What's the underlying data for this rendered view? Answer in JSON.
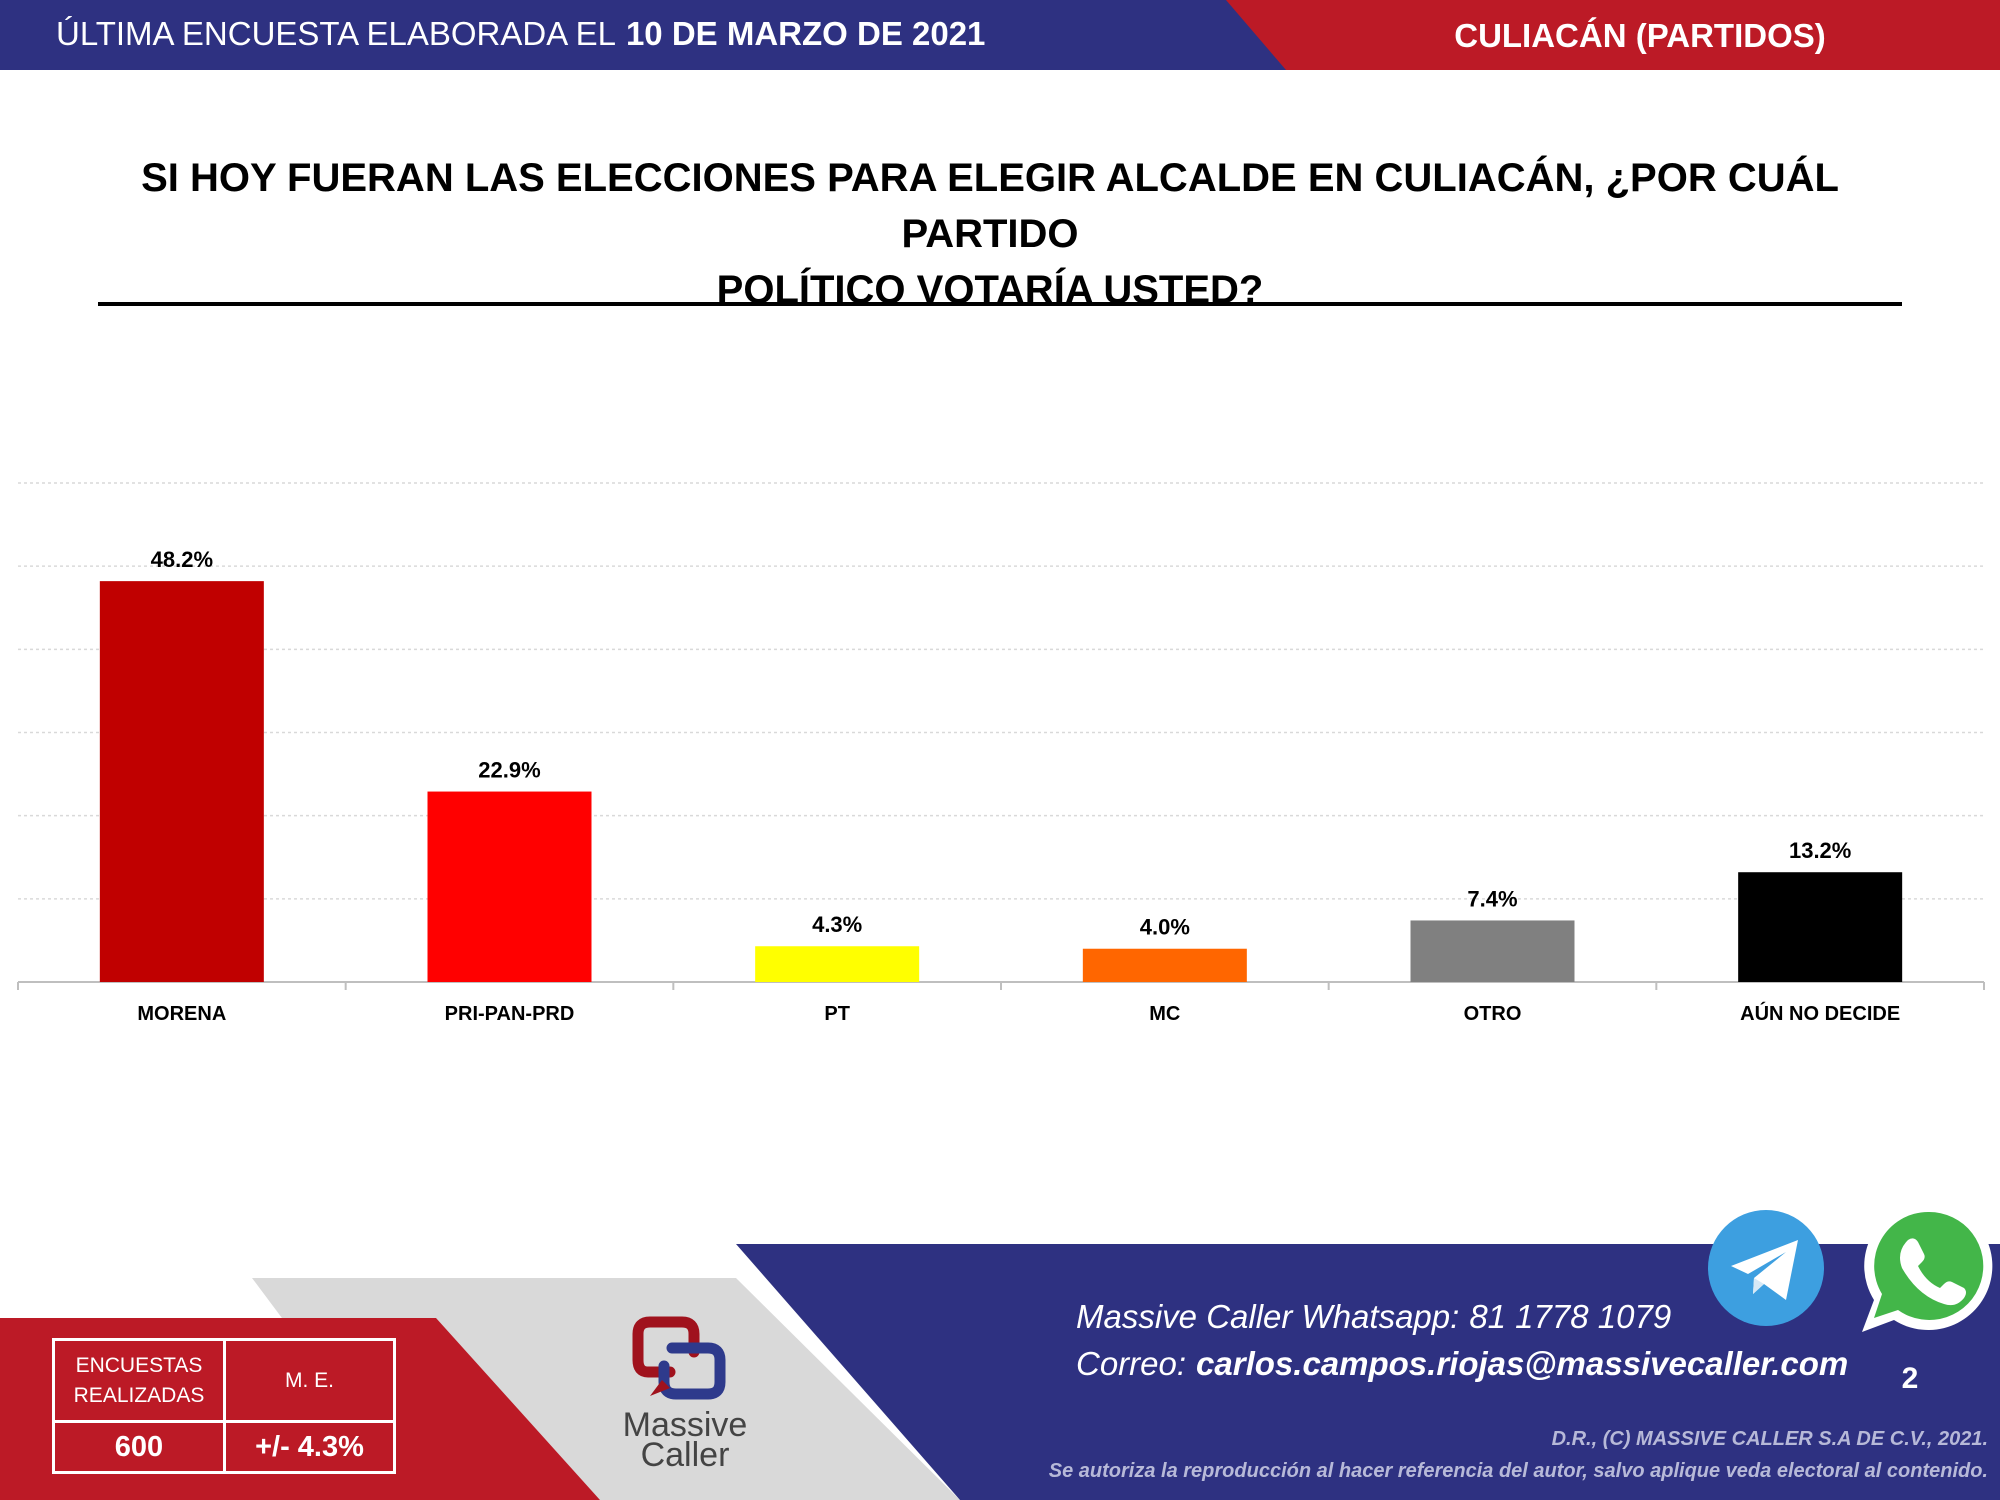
{
  "header": {
    "left_label": "ÚLTIMA ENCUESTA ELABORADA EL",
    "date": "10 DE MARZO DE 2021",
    "right_label": "CULIACÁN (PARTIDOS)",
    "colors": {
      "navy": "#2e3181",
      "red": "#bc1a26"
    }
  },
  "title": {
    "line1": "SI HOY FUERAN LAS ELECCIONES PARA ELEGIR ALCALDE EN CULIACÁN, ¿POR CUÁL PARTIDO",
    "line2": "POLÍTICO VOTARÍA USTED?"
  },
  "chart_data": {
    "type": "bar",
    "categories": [
      "MORENA",
      "PRI-PAN-PRD",
      "PT",
      "MC",
      "OTRO",
      "AÚN NO DECIDE"
    ],
    "values": [
      48.2,
      22.9,
      4.3,
      4.0,
      7.4,
      13.2
    ],
    "value_labels": [
      "48.2%",
      "22.9%",
      "4.3%",
      "4.0%",
      "7.4%",
      "13.2%"
    ],
    "colors": [
      "#c00000",
      "#ff0000",
      "#ffff00",
      "#ff6600",
      "#808080",
      "#000000"
    ],
    "ylim": [
      0,
      60
    ],
    "gridlines": true,
    "legend": false
  },
  "footer": {
    "stats": {
      "surveys_label": "ENCUESTAS REALIZADAS",
      "surveys_value": "600",
      "margin_label": "M. E.",
      "margin_value": "+/- 4.3%"
    },
    "logo": {
      "line1": "Massive",
      "line2": "Caller"
    },
    "contact": {
      "whatsapp_label": "Massive Caller Whatsapp:",
      "whatsapp_number": "81 1778 1079",
      "email_label": "Correo:",
      "email": "carlos.campos.riojas@massivecaller.com"
    },
    "page_number": "2",
    "copyright_line1": "D.R., (C) MASSIVE CALLER S.A DE C.V., 2021.",
    "copyright_line2": "Se autoriza la reproducción al hacer referencia del autor, salvo aplique veda electoral al contenido.",
    "icons": [
      "telegram-icon",
      "whatsapp-icon"
    ]
  }
}
